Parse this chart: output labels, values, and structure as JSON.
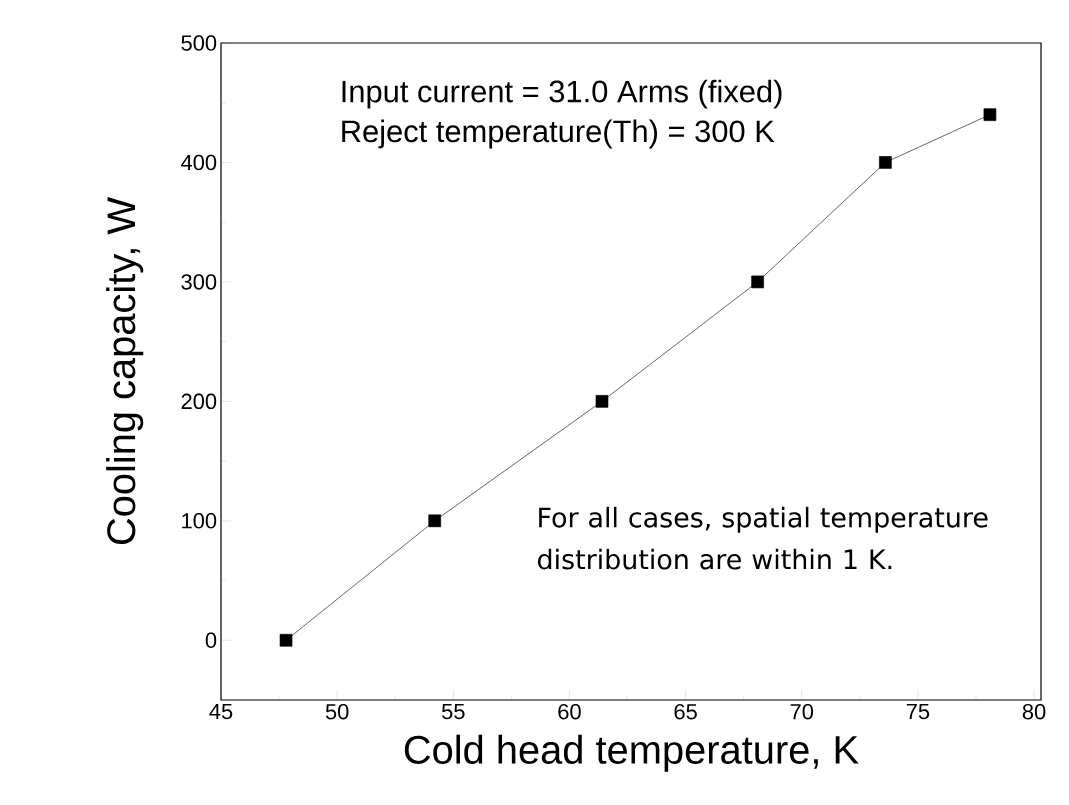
{
  "chart_data": {
    "type": "line",
    "xlabel": "Cold head temperature, K",
    "ylabel": "Cooling capacity, W",
    "x": [
      47.8,
      54.2,
      61.4,
      68.1,
      73.6,
      78.1
    ],
    "values": [
      0,
      100,
      200,
      300,
      400,
      440
    ],
    "color": "#000000",
    "marker": "square",
    "line_style": "solid",
    "xlim": [
      45,
      80.3
    ],
    "ylim": [
      -50,
      500
    ],
    "xticks": [
      45,
      50,
      55,
      60,
      65,
      70,
      75,
      80
    ],
    "yticks": [
      0,
      100,
      200,
      300,
      400,
      500
    ],
    "grid": false,
    "annotations": [
      {
        "text": "Input current = 31.0 Arms (fixed)"
      },
      {
        "text": "Reject temperature(Th) = 300 K"
      },
      {
        "text": "For all cases, spatial temperature distribution are within 1 K."
      }
    ]
  }
}
